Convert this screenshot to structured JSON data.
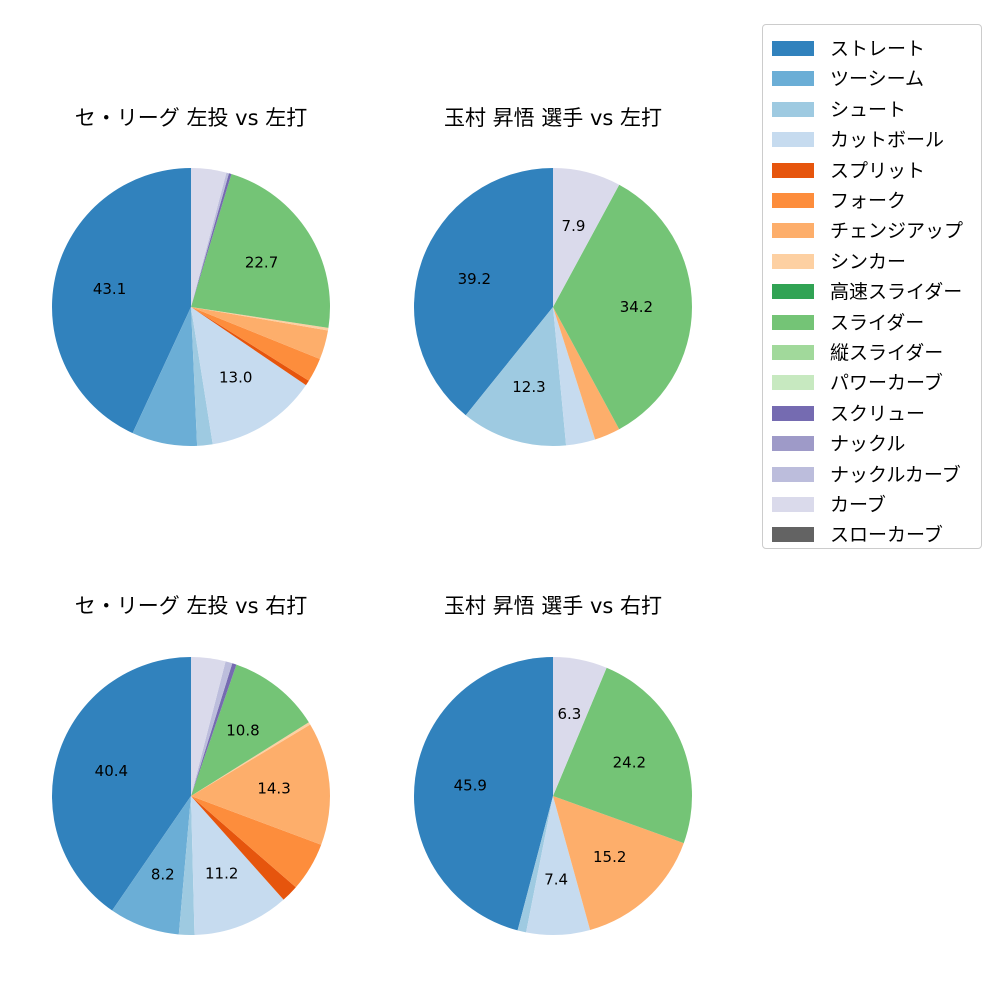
{
  "chart_data": [
    {
      "type": "pie",
      "title": "セ・リーグ 左投 vs 左打",
      "categories": [
        "ストレート",
        "ツーシーム",
        "シュート",
        "カットボール",
        "スプリット",
        "フォーク",
        "チェンジアップ",
        "シンカー",
        "スライダー",
        "スクリュー",
        "ナックルカーブ",
        "カーブ"
      ],
      "values": [
        43.1,
        7.6,
        1.8,
        13.0,
        0.6,
        2.8,
        3.4,
        0.3,
        22.7,
        0.3,
        0.3,
        4.1
      ],
      "labels": [
        "43.1",
        "",
        "",
        "13.0",
        "",
        "",
        "",
        "",
        "22.7",
        "",
        "",
        ""
      ]
    },
    {
      "type": "pie",
      "title": "玉村 昇悟 選手 vs 左打",
      "categories": [
        "ストレート",
        "シュート",
        "カットボール",
        "チェンジアップ",
        "スライダー",
        "カーブ"
      ],
      "values": [
        39.2,
        12.3,
        3.4,
        3.0,
        34.2,
        7.9
      ],
      "labels": [
        "39.2",
        "12.3",
        "",
        "",
        "34.2",
        "7.9"
      ]
    },
    {
      "type": "pie",
      "title": "セ・リーグ 左投 vs 右打",
      "categories": [
        "ストレート",
        "ツーシーム",
        "シュート",
        "カットボール",
        "スプリット",
        "フォーク",
        "チェンジアップ",
        "シンカー",
        "スライダー",
        "スクリュー",
        "ナックルカーブ",
        "カーブ"
      ],
      "values": [
        40.4,
        8.2,
        1.8,
        11.2,
        2.0,
        5.7,
        14.3,
        0.3,
        10.8,
        0.5,
        0.8,
        4.0
      ],
      "labels": [
        "40.4",
        "8.2",
        "",
        "11.2",
        "",
        "",
        "14.3",
        "",
        "10.8",
        "",
        "",
        ""
      ]
    },
    {
      "type": "pie",
      "title": "玉村 昇悟 選手 vs 右打",
      "categories": [
        "ストレート",
        "シュート",
        "カットボール",
        "チェンジアップ",
        "スライダー",
        "カーブ"
      ],
      "values": [
        45.9,
        1.0,
        7.4,
        15.2,
        24.2,
        6.3
      ],
      "labels": [
        "45.9",
        "",
        "7.4",
        "15.2",
        "24.2",
        "6.3"
      ]
    }
  ],
  "titles": {
    "top_left": "セ・リーグ 左投 vs 左打",
    "top_right": "玉村 昇悟 選手 vs 左打",
    "bottom_left": "セ・リーグ 左投 vs 右打",
    "bottom_right": "玉村 昇悟 選手 vs 右打"
  },
  "legend": {
    "items": [
      {
        "label": "ストレート",
        "color": "#3182bd"
      },
      {
        "label": "ツーシーム",
        "color": "#6baed6"
      },
      {
        "label": "シュート",
        "color": "#9ecae1"
      },
      {
        "label": "カットボール",
        "color": "#c6dbef"
      },
      {
        "label": "スプリット",
        "color": "#e6550d"
      },
      {
        "label": "フォーク",
        "color": "#fd8d3c"
      },
      {
        "label": "チェンジアップ",
        "color": "#fdae6b"
      },
      {
        "label": "シンカー",
        "color": "#fdd0a2"
      },
      {
        "label": "高速スライダー",
        "color": "#31a354"
      },
      {
        "label": "スライダー",
        "color": "#74c476"
      },
      {
        "label": "縦スライダー",
        "color": "#a1d99b"
      },
      {
        "label": "パワーカーブ",
        "color": "#c7e9c0"
      },
      {
        "label": "スクリュー",
        "color": "#756bb1"
      },
      {
        "label": "ナックル",
        "color": "#9e9ac8"
      },
      {
        "label": "ナックルカーブ",
        "color": "#bcbddc"
      },
      {
        "label": "カーブ",
        "color": "#dadaeb"
      },
      {
        "label": "スローカーブ",
        "color": "#636363"
      }
    ]
  }
}
